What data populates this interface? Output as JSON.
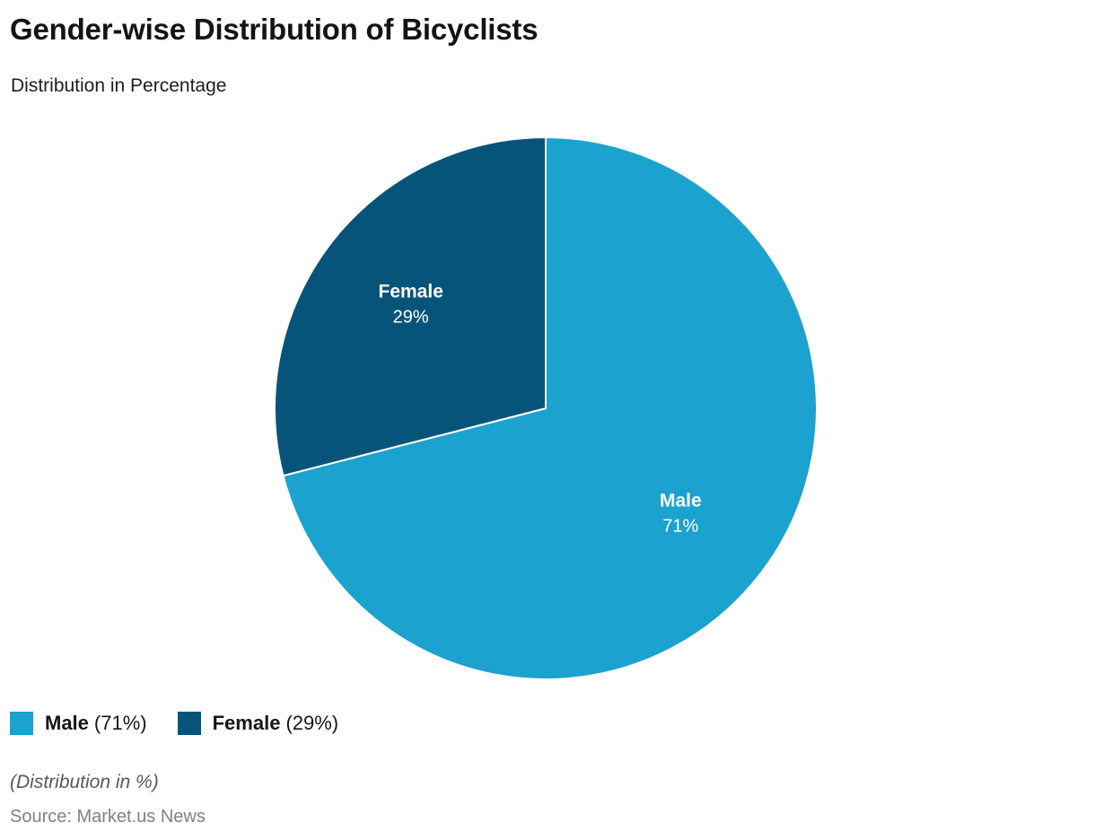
{
  "header": {
    "title": "Gender-wise Distribution of Bicyclists",
    "subtitle": "Distribution in Percentage"
  },
  "chart_data": {
    "type": "pie",
    "title": "Gender-wise Distribution of Bicyclists",
    "subtitle": "Distribution in Percentage",
    "categories": [
      "Male",
      "Female"
    ],
    "values": [
      71,
      29
    ],
    "unit": "%",
    "colors": [
      "#1BA2CF",
      "#07547A"
    ],
    "slice_labels": [
      {
        "name": "Male",
        "value_text": "71%"
      },
      {
        "name": "Female",
        "value_text": "29%"
      }
    ],
    "start_angle_deg": 0,
    "direction": "clockwise",
    "separator_color": "#ffffff",
    "legend_position": "bottom-left"
  },
  "legend": {
    "items": [
      {
        "label": "Male",
        "value_text": "(71%)",
        "color": "#1BA2CF"
      },
      {
        "label": "Female",
        "value_text": "(29%)",
        "color": "#07547A"
      }
    ]
  },
  "footer": {
    "note": "(Distribution in %)",
    "source": "Source: Market.us News"
  }
}
